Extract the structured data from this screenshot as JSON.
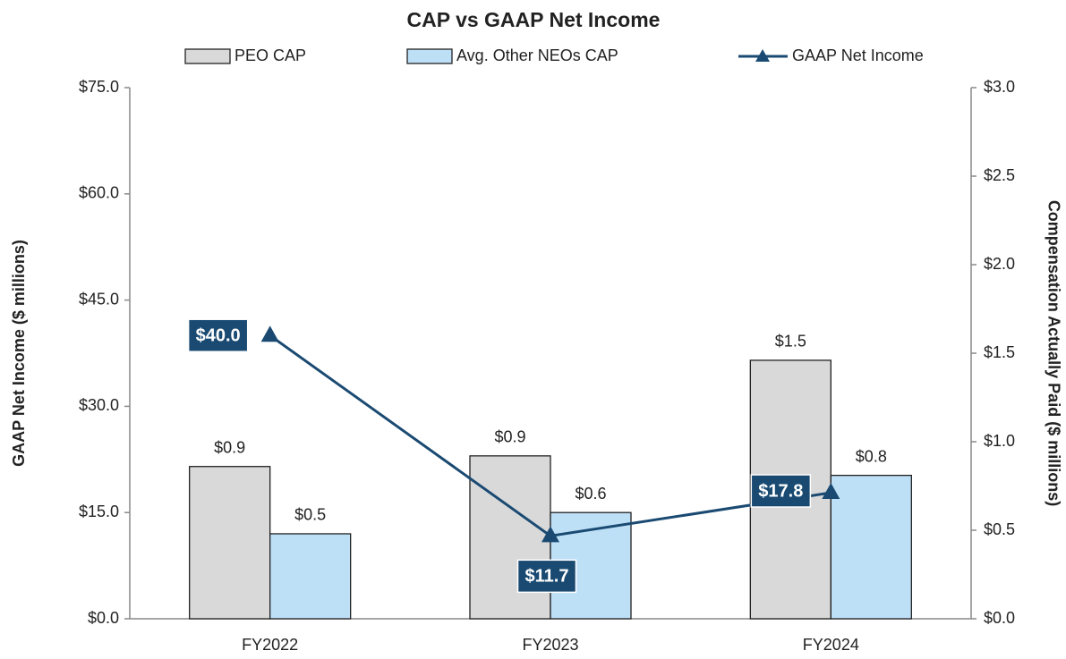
{
  "chart_data": {
    "type": "bar",
    "title": "CAP vs GAAP Net Income",
    "categories": [
      "FY2022",
      "FY2023",
      "FY2024"
    ],
    "series": [
      {
        "name": "PEO CAP",
        "type": "bar",
        "axis": "y2",
        "color": "#d9d9d9",
        "values": [
          0.86,
          0.92,
          1.46
        ],
        "value_labels": [
          "$0.9",
          "$0.9",
          "$1.5"
        ]
      },
      {
        "name": "Avg. Other NEOs CAP",
        "type": "bar",
        "axis": "y2",
        "color": "#bde0f7",
        "values": [
          0.48,
          0.6,
          0.81
        ],
        "value_labels": [
          "$0.5",
          "$0.6",
          "$0.8"
        ]
      },
      {
        "name": "GAAP Net Income",
        "type": "line",
        "axis": "y",
        "color": "#1a4a72",
        "values": [
          40.0,
          11.7,
          17.8
        ],
        "value_labels": [
          "$40.0",
          "$11.7",
          "$17.8"
        ]
      }
    ],
    "y_label": "GAAP Net Income ($ millions)",
    "y2_label": "Compensation Actually Paid ($ millions)",
    "ylim": [
      0,
      75
    ],
    "yticks": [
      {
        "value": 0,
        "label": "$0.0"
      },
      {
        "value": 15,
        "label": "$15.0"
      },
      {
        "value": 30,
        "label": "$30.0"
      },
      {
        "value": 45,
        "label": "$45.0"
      },
      {
        "value": 60,
        "label": "$60.0"
      },
      {
        "value": 75,
        "label": "$75.0"
      }
    ],
    "y2lim": [
      0,
      3
    ],
    "y2ticks": [
      {
        "value": 0,
        "label": "$0.0"
      },
      {
        "value": 0.5,
        "label": "$0.5"
      },
      {
        "value": 1,
        "label": "$1.0"
      },
      {
        "value": 1.5,
        "label": "$1.5"
      },
      {
        "value": 2,
        "label": "$2.0"
      },
      {
        "value": 2.5,
        "label": "$2.5"
      },
      {
        "value": 3,
        "label": "$3.0"
      }
    ],
    "grid": false,
    "legend": "top"
  }
}
